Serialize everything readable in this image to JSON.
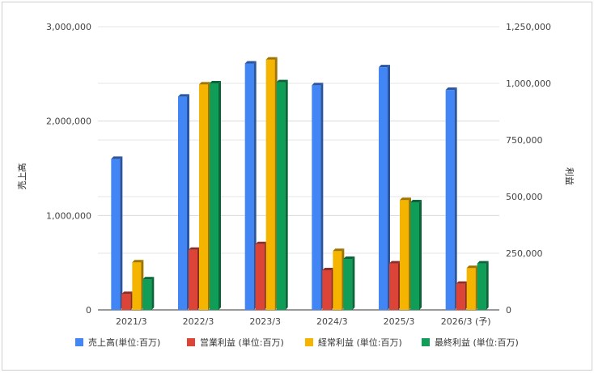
{
  "chart_data": {
    "type": "bar",
    "title": "",
    "categories": [
      "2021/3",
      "2022/3",
      "2023/3",
      "2024/3",
      "2025/3",
      "2026/3 (予)"
    ],
    "y_left": {
      "label": "売上高",
      "range": [
        0,
        3000000
      ],
      "ticks": [
        0,
        1000000,
        2000000,
        3000000
      ],
      "tick_labels": [
        "0",
        "1,000,000",
        "2,000,000",
        "3,000,000"
      ]
    },
    "y_right": {
      "label": "利益",
      "range": [
        0,
        1250000
      ],
      "ticks": [
        0,
        250000,
        500000,
        750000,
        1000000,
        1250000
      ],
      "tick_labels": [
        "0",
        "250,000",
        "500,000",
        "750,000",
        "1,000,000",
        "1,250,000"
      ]
    },
    "grid": true,
    "legend_position": "bottom",
    "series": [
      {
        "name": "売上高(単位:百万)",
        "axis": "left",
        "color": "#4285F4",
        "values": [
          1600000,
          2260000,
          2610000,
          2380000,
          2570000,
          2330000
        ]
      },
      {
        "name": "営業利益 (単位:百万)",
        "axis": "right",
        "color": "#DB4437",
        "values": [
          70000,
          265000,
          290000,
          175000,
          205000,
          115000
        ]
      },
      {
        "name": "経常利益 (単位:百万)",
        "axis": "right",
        "color": "#F4B400",
        "values": [
          210000,
          995000,
          1105000,
          260000,
          485000,
          185000
        ]
      },
      {
        "name": "最終利益 (単位:百万)",
        "axis": "right",
        "color": "#0F9D58",
        "values": [
          135000,
          1000000,
          1005000,
          225000,
          475000,
          205000
        ]
      }
    ]
  }
}
